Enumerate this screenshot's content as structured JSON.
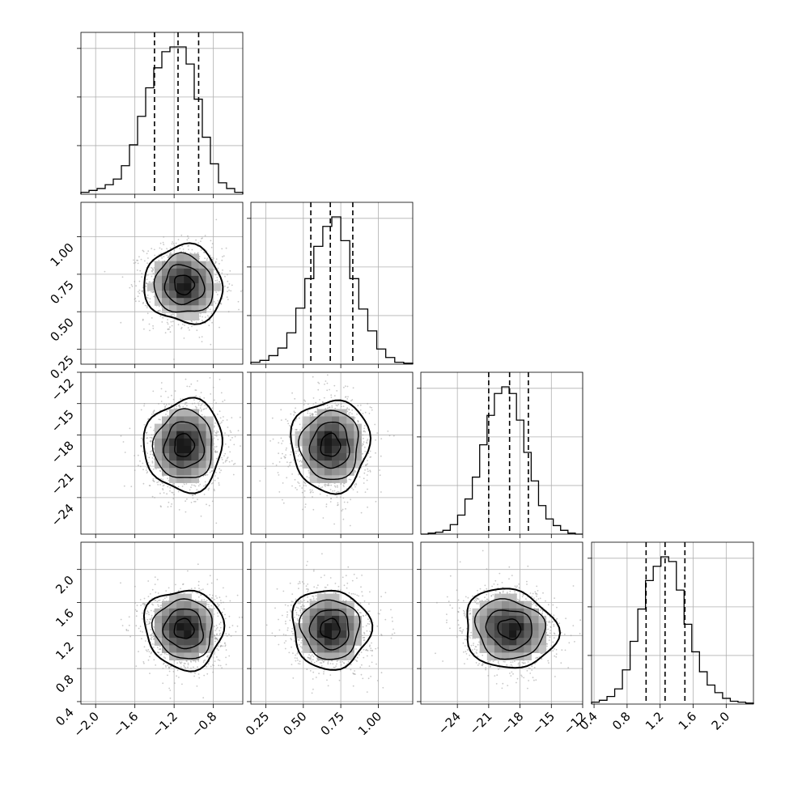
{
  "chart_data": {
    "type": "corner",
    "grid": true,
    "quantile_lines_style": "dashed",
    "parameters": [
      {
        "xlim": [
          -2.15,
          -0.5
        ],
        "ticks": [
          -2.0,
          -1.6,
          -1.2,
          -0.8
        ],
        "tick_labels": [
          "−2.0",
          "−1.6",
          "−1.2",
          "−0.8"
        ],
        "quantiles": [
          -1.4,
          -1.16,
          -0.95
        ],
        "histogram": {
          "range": [
            -2.15,
            -0.5
          ],
          "counts": [
            2,
            4,
            6,
            10,
            16,
            30,
            52,
            82,
            112,
            133,
            150,
            155,
            155,
            137,
            100,
            60,
            32,
            12,
            6,
            2
          ]
        }
      },
      {
        "xlim": [
          0.15,
          1.23
        ],
        "ticks": [
          0.25,
          0.5,
          0.75,
          1.0
        ],
        "tick_labels": [
          "0.25",
          "0.50",
          "0.75",
          "1.00"
        ],
        "quantiles": [
          0.55,
          0.68,
          0.83
        ],
        "histogram": {
          "range": [
            0.15,
            1.23
          ],
          "counts": [
            2,
            4,
            9,
            17,
            33,
            59,
            90,
            124,
            145,
            155,
            130,
            90,
            58,
            35,
            16,
            7,
            2,
            1
          ]
        }
      },
      {
        "xlim": [
          -27.5,
          -12.0
        ],
        "ticks": [
          -24,
          -21,
          -18,
          -15,
          -12
        ],
        "tick_labels": [
          "−24",
          "−21",
          "−18",
          "−15",
          "−12"
        ],
        "quantiles": [
          -21.0,
          -19.0,
          -17.2
        ],
        "histogram": {
          "range": [
            -27.5,
            -12.0
          ],
          "counts": [
            0,
            1,
            2,
            4,
            10,
            20,
            37,
            60,
            94,
            125,
            148,
            155,
            148,
            120,
            86,
            56,
            30,
            16,
            9,
            4,
            1,
            0
          ]
        }
      },
      {
        "xlim": [
          0.37,
          2.33
        ],
        "ticks": [
          0.4,
          0.8,
          1.2,
          1.6,
          2.0
        ],
        "tick_labels": [
          "0.4",
          "0.8",
          "1.2",
          "1.6",
          "2.0"
        ],
        "y_tick_labels": [
          "0.4",
          "0.8",
          "1.2",
          "1.6",
          "2.0"
        ],
        "quantiles": [
          1.03,
          1.26,
          1.5
        ],
        "histogram": {
          "range": [
            0.37,
            2.33
          ],
          "counts": [
            2,
            4,
            8,
            16,
            36,
            66,
            100,
            130,
            145,
            155,
            150,
            120,
            84,
            55,
            34,
            20,
            12,
            6,
            3,
            2,
            1
          ]
        }
      }
    ],
    "joint": {
      "centers": [
        -1.1,
        0.68,
        -19.0,
        1.28
      ],
      "sigmas": [
        0.2,
        0.13,
        2.2,
        0.24
      ],
      "correlations": {
        "1-0": -0.05,
        "2-0": 0.02,
        "2-1": 0.02,
        "3-0": -0.05,
        "3-1": -0.04,
        "3-2": -0.1
      },
      "contour_levels_sigma": [
        0.5,
        1.0,
        1.5,
        2.0
      ]
    }
  }
}
